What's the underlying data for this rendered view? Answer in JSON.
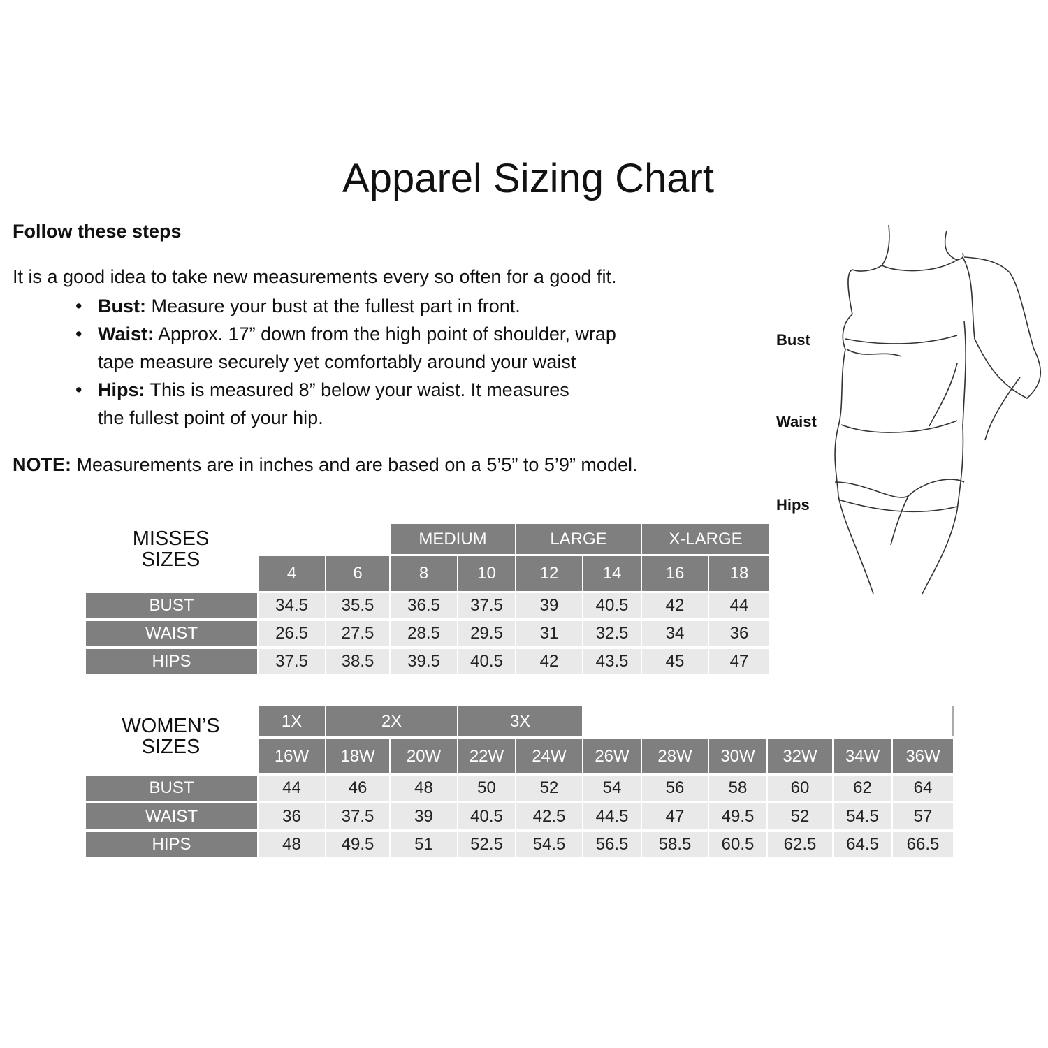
{
  "title": "Apparel Sizing Chart",
  "steps_heading": "Follow these steps",
  "intro": "It is a good idea to take new measurements every so often for a good fit.",
  "bullets": [
    {
      "term": "Bust:",
      "lines": [
        "Measure your bust at the fullest part in front."
      ]
    },
    {
      "term": "Waist:",
      "lines": [
        "Approx. 17” down from the high point of shoulder, wrap",
        "tape measure securely yet comfortably around your waist"
      ]
    },
    {
      "term": "Hips:",
      "lines": [
        "This is measured 8” below your waist. It measures",
        "the fullest point of your hip."
      ]
    }
  ],
  "note": {
    "label": "NOTE:",
    "text": "Measurements are in inches and are based on a 5’5” to 5’9” model."
  },
  "figure_labels": {
    "bust": "Bust",
    "waist": "Waist",
    "hips": "Hips"
  },
  "colors": {
    "header": "#7f7f7f",
    "cell": "#e9e9e9"
  },
  "misses": {
    "title_lines": [
      "MISSES",
      "SIZES"
    ],
    "groups": [
      {
        "label": "",
        "span": 2
      },
      {
        "label": "MEDIUM",
        "span": 2
      },
      {
        "label": "LARGE",
        "span": 2
      },
      {
        "label": "X-LARGE",
        "span": 2
      }
    ],
    "sizes": [
      "4",
      "6",
      "8",
      "10",
      "12",
      "14",
      "16",
      "18"
    ],
    "rows": [
      {
        "label": "BUST",
        "values": [
          "34.5",
          "35.5",
          "36.5",
          "37.5",
          "39",
          "40.5",
          "42",
          "44"
        ]
      },
      {
        "label": "WAIST",
        "values": [
          "26.5",
          "27.5",
          "28.5",
          "29.5",
          "31",
          "32.5",
          "34",
          "36"
        ]
      },
      {
        "label": "HIPS",
        "values": [
          "37.5",
          "38.5",
          "39.5",
          "40.5",
          "42",
          "43.5",
          "45",
          "47"
        ]
      }
    ]
  },
  "womens": {
    "title_lines": [
      "WOMEN’S",
      "SIZES"
    ],
    "groups": [
      {
        "label": "1X",
        "span": 1
      },
      {
        "label": "2X",
        "span": 2
      },
      {
        "label": "3X",
        "span": 2
      },
      {
        "label": "",
        "span": 6
      }
    ],
    "sizes": [
      "16W",
      "18W",
      "20W",
      "22W",
      "24W",
      "26W",
      "28W",
      "30W",
      "32W",
      "34W",
      "36W"
    ],
    "rows": [
      {
        "label": "BUST",
        "values": [
          "44",
          "46",
          "48",
          "50",
          "52",
          "54",
          "56",
          "58",
          "60",
          "62",
          "64"
        ]
      },
      {
        "label": "WAIST",
        "values": [
          "36",
          "37.5",
          "39",
          "40.5",
          "42.5",
          "44.5",
          "47",
          "49.5",
          "52",
          "54.5",
          "57"
        ]
      },
      {
        "label": "HIPS",
        "values": [
          "48",
          "49.5",
          "51",
          "52.5",
          "54.5",
          "56.5",
          "58.5",
          "60.5",
          "62.5",
          "64.5",
          "66.5"
        ]
      }
    ]
  }
}
